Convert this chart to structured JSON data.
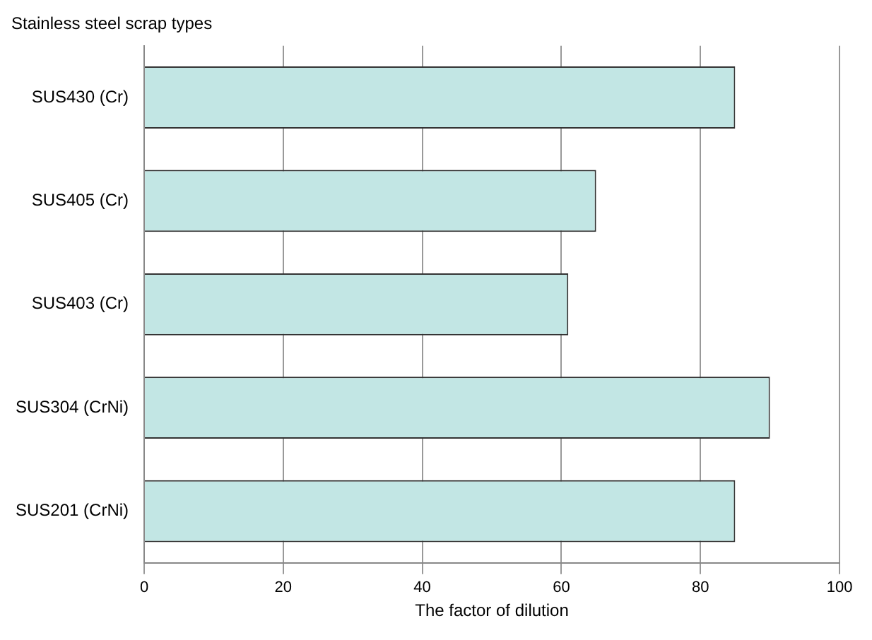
{
  "chart_data": {
    "type": "bar",
    "orientation": "horizontal",
    "title": "Stainless steel scrap types",
    "xlabel": "The factor of dilution",
    "categories": [
      "SUS430 (Cr)",
      "SUS405 (Cr)",
      "SUS403 (Cr)",
      "SUS304 (CrNi)",
      "SUS201 (CrNi)"
    ],
    "values": [
      85,
      65,
      61,
      90,
      85
    ],
    "color": "#c2e6e4",
    "xlim": [
      0,
      100
    ],
    "xticks": [
      0,
      20,
      40,
      60,
      80,
      100
    ],
    "grid": "x",
    "legend": false
  }
}
